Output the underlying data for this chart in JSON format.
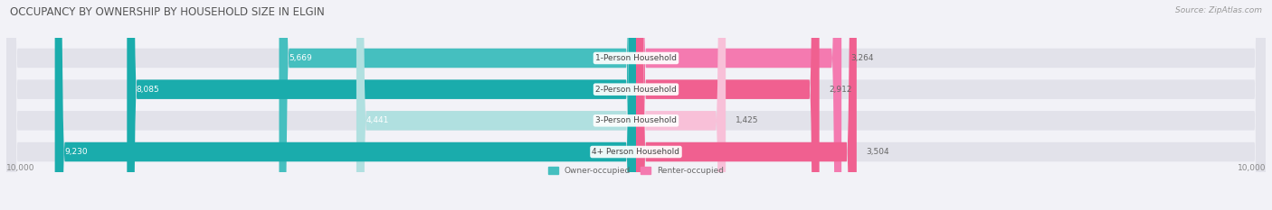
{
  "title": "OCCUPANCY BY OWNERSHIP BY HOUSEHOLD SIZE IN ELGIN",
  "source": "Source: ZipAtlas.com",
  "categories": [
    "1-Person Household",
    "2-Person Household",
    "3-Person Household",
    "4+ Person Household"
  ],
  "owner_values": [
    5669,
    8085,
    4441,
    9230
  ],
  "renter_values": [
    3264,
    2912,
    1425,
    3504
  ],
  "max_val": 10000,
  "owner_colors": [
    "#45bfbf",
    "#1aacac",
    "#b0e0e0",
    "#1aacac"
  ],
  "renter_colors": [
    "#f47ab0",
    "#f06090",
    "#f8c0d8",
    "#f06090"
  ],
  "bg_color": "#f2f2f7",
  "bar_bg_color": "#e2e2ea",
  "title_color": "#555555",
  "bar_height": 0.62,
  "figsize": [
    14.06,
    2.33
  ],
  "dpi": 100,
  "legend_owner_color": "#45bfbf",
  "legend_renter_color": "#f47ab0",
  "row_order": [
    3,
    2,
    1,
    0
  ]
}
